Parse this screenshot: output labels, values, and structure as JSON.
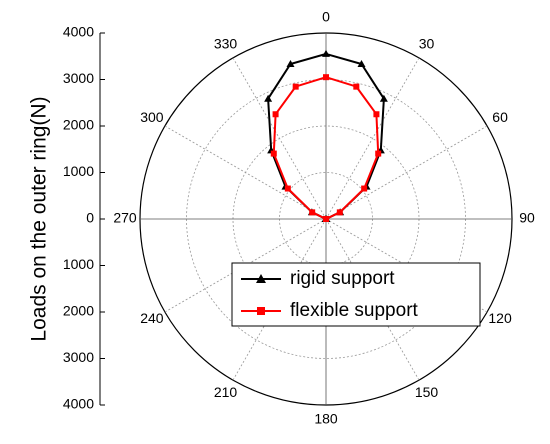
{
  "chart_data": {
    "type": "polar",
    "y_axis_label": "Loads on the outer ring(N)",
    "x": [
      0,
      12.9,
      25.7,
      38.6,
      51.4,
      64.3,
      77.1,
      90,
      102.9,
      115.7,
      128.6,
      141.4,
      154.3,
      167.1,
      180,
      192.9,
      205.7,
      218.6,
      231.4,
      244.3,
      257.1,
      270,
      282.9,
      295.7,
      308.6,
      321.4,
      334.3,
      347.1
    ],
    "xticks": [
      0,
      30,
      60,
      90,
      120,
      150,
      180,
      210,
      240,
      270,
      300,
      330
    ],
    "ylim": [
      0,
      4000
    ],
    "yticks": [
      0,
      1000,
      2000,
      3000,
      4000
    ],
    "grid": true,
    "series": [
      {
        "name": "rigid support",
        "color": "#000000",
        "marker": "triangle",
        "values": [
          3550,
          3420,
          2870,
          1890,
          1115,
          337,
          0,
          0,
          0,
          0,
          0,
          0,
          0,
          0,
          0,
          0,
          0,
          0,
          0,
          0,
          0,
          0,
          0,
          337,
          1115,
          1890,
          2870,
          3420
        ]
      },
      {
        "name": "flexible support",
        "color": "#ff0000",
        "marker": "square",
        "values": [
          3050,
          2920,
          2500,
          1800,
          1050,
          330,
          0,
          0,
          0,
          0,
          0,
          0,
          0,
          0,
          0,
          0,
          0,
          0,
          0,
          0,
          0,
          0,
          0,
          330,
          1050,
          1800,
          2500,
          2920
        ]
      }
    ]
  }
}
